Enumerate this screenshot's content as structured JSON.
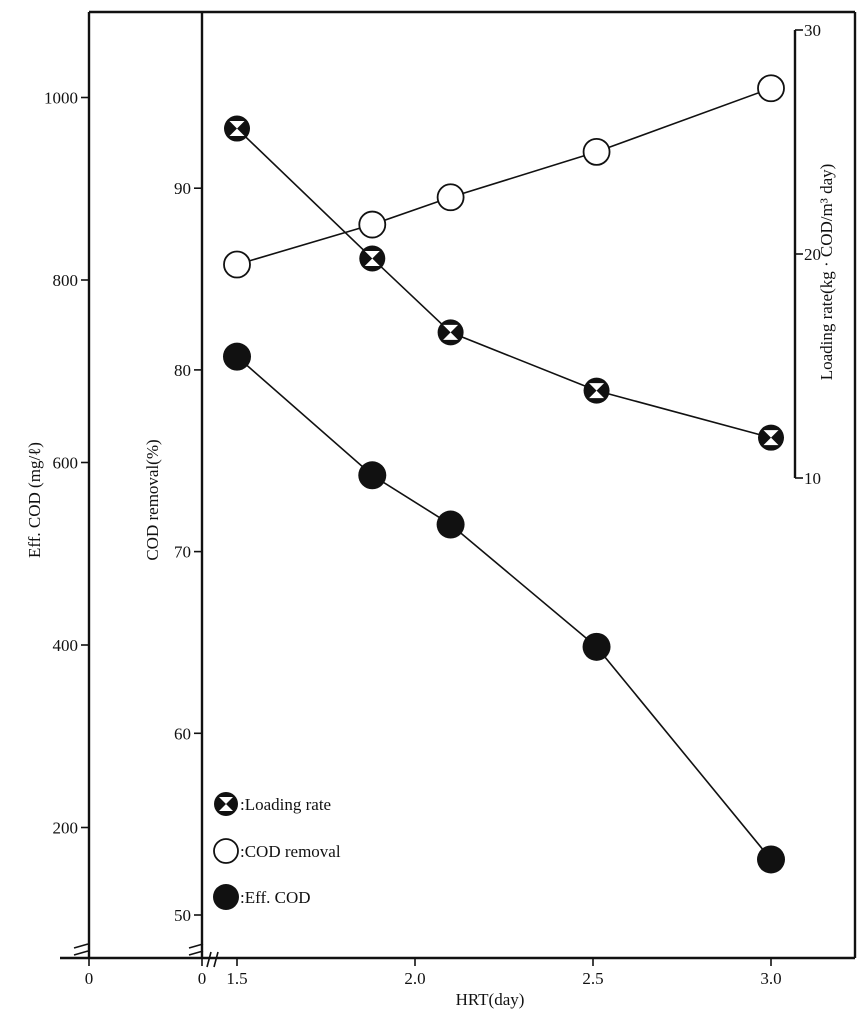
{
  "chart_data": {
    "type": "line",
    "xlabel": "HRT(day)",
    "x_ticks": [
      "0",
      "0",
      "1.5",
      "2.0",
      "2.5",
      "3.0"
    ],
    "axes": {
      "eff_cod": {
        "label": "Eff. COD (mg/ℓ)",
        "range": [
          0,
          1100
        ],
        "ticks": [
          "200",
          "400",
          "600",
          "800",
          "1000"
        ]
      },
      "cod_removal": {
        "label": "COD removal(%)",
        "range": [
          50,
          100
        ],
        "ticks": [
          "50",
          "60",
          "70",
          "80",
          "90"
        ]
      },
      "loading_rate": {
        "label": "Loading rate(kg · COD/m³ day)",
        "range": [
          10,
          30
        ],
        "ticks": [
          "10",
          "20",
          "30"
        ]
      }
    },
    "series": [
      {
        "name": "Loading rate",
        "key": "loading_rate",
        "marker": "hourglass",
        "x": [
          1.5,
          1.88,
          2.1,
          2.51,
          3.0
        ],
        "y": [
          25.6,
          19.8,
          16.5,
          13.9,
          11.8
        ]
      },
      {
        "name": "COD removal",
        "key": "cod_removal",
        "marker": "open",
        "x": [
          1.5,
          1.88,
          2.1,
          2.51,
          3.0
        ],
        "y": [
          85.8,
          88.0,
          89.5,
          92.0,
          95.5
        ]
      },
      {
        "name": "Eff. COD",
        "key": "eff_cod",
        "marker": "filled",
        "x": [
          1.5,
          1.88,
          2.1,
          2.51,
          3.0
        ],
        "y": [
          716,
          586,
          532,
          398,
          165
        ]
      }
    ],
    "legend": {
      "position": "bottom-left",
      "labels": [
        ":Loading rate",
        ":COD removal",
        ":Eff. COD"
      ]
    }
  }
}
